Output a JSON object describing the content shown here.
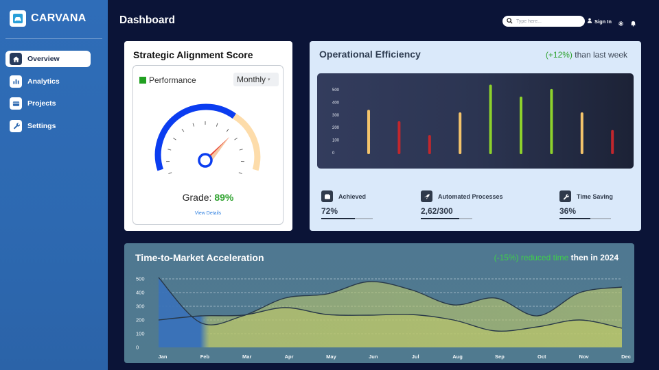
{
  "brand": {
    "name": "CARVANA"
  },
  "sidebar": {
    "items": [
      {
        "label": "Overview",
        "icon": "home-icon",
        "active": true
      },
      {
        "label": "Analytics",
        "icon": "bar-chart-icon",
        "active": false
      },
      {
        "label": "Projects",
        "icon": "credit-card-icon",
        "active": false
      },
      {
        "label": "Settings",
        "icon": "wrench-icon",
        "active": false
      }
    ]
  },
  "header": {
    "title": "Dashboard",
    "search_placeholder": "Type here...",
    "signin_label": "Sign In",
    "icons": [
      "search-icon",
      "user-icon",
      "gear-icon",
      "bell-icon"
    ]
  },
  "strategic": {
    "title": "Strategic Alignment Score",
    "legend_label": "Performance",
    "period_select": "Monthly",
    "grade_label": "Grade:",
    "grade_value": "89%",
    "link_label": "View Details",
    "colors": {
      "legend": "#21a021",
      "arc_main": "#0b3df0",
      "arc_end": "#fddcaa",
      "needle": "#e9483a"
    }
  },
  "operational": {
    "title": "Operational Efficiency",
    "delta_value": "(+12%)",
    "delta_text": "than last week",
    "stats": [
      {
        "label": "Achieved",
        "value": "72%",
        "icon": "wallet-icon",
        "progress": 0.65
      },
      {
        "label": "Automated Processes",
        "value": "2,62/300",
        "icon": "rocket-icon",
        "progress": 0.75
      },
      {
        "label": "Time Saving",
        "value": "36%",
        "icon": "wrench-icon",
        "progress": 0.6
      }
    ]
  },
  "ttm": {
    "title": "Time-to-Market Acceleration",
    "delta_value": "(-15%) reduced time",
    "delta_text": "then in 2024"
  },
  "chart_data": [
    {
      "type": "bar",
      "title": "",
      "ylim": [
        0,
        500
      ],
      "yticks": [
        0,
        100,
        200,
        300,
        400,
        500
      ],
      "categories": [
        "b1",
        "b2",
        "b3",
        "b4",
        "b5",
        "b6",
        "b7",
        "b8",
        "b9"
      ],
      "values": [
        330,
        240,
        130,
        310,
        530,
        435,
        495,
        310,
        170
      ],
      "colors": [
        "#f4c46b",
        "#c1272d",
        "#c1272d",
        "#f4c46b",
        "#8dd12c",
        "#8dd12c",
        "#8dd12c",
        "#f4c46b",
        "#c1272d"
      ],
      "grid": false
    },
    {
      "type": "area",
      "title": "",
      "categories": [
        "Jan",
        "Feb",
        "Mar",
        "Apr",
        "May",
        "Jun",
        "Jul",
        "Aug",
        "Sep",
        "Oct",
        "Nov",
        "Dec"
      ],
      "ylim": [
        0,
        500
      ],
      "yticks": [
        0,
        100,
        200,
        300,
        400,
        500
      ],
      "grid": true,
      "series": [
        {
          "values": [
            510,
            180,
            230,
            360,
            390,
            480,
            420,
            310,
            360,
            230,
            400,
            440
          ],
          "colors": [
            "#3a72b8",
            "#bcc76a"
          ]
        },
        {
          "values": [
            200,
            230,
            235,
            290,
            240,
            235,
            240,
            200,
            120,
            150,
            200,
            140
          ],
          "colors": [
            "#3a72b8",
            "#bcc76a"
          ]
        }
      ]
    }
  ]
}
